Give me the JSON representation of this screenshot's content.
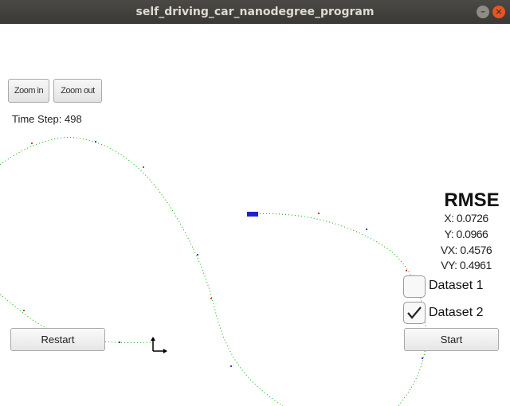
{
  "window": {
    "title": "self_driving_car_nanodegree_program"
  },
  "toolbar": {
    "zoom_in_label": "Zoom in",
    "zoom_out_label": "Zoom out"
  },
  "status": {
    "time_step_label": "Time Step: 498"
  },
  "rmse": {
    "title": "RMSE",
    "x": "X: 0.0726",
    "y": "Y: 0.0966",
    "vx": "VX: 0.4576",
    "vy": "VY: 0.4961"
  },
  "datasets": [
    {
      "label": "Dataset 1",
      "checked": false
    },
    {
      "label": "Dataset 2",
      "checked": true
    }
  ],
  "controls": {
    "restart_label": "Restart",
    "start_label": "Start"
  },
  "colors": {
    "accent": "#e95420",
    "lidar": "#cc0000",
    "radar": "#0000cc",
    "estimate": "#00aa00",
    "car": "#2222cc"
  }
}
